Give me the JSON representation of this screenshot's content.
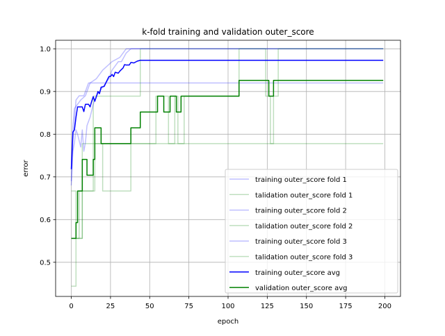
{
  "chart_data": {
    "type": "line",
    "title": "k-fold training and validation outer_score",
    "xlabel": "epoch",
    "ylabel": "error",
    "xlim": [
      -10,
      210
    ],
    "ylim": [
      0.42,
      1.02
    ],
    "xticks": [
      0,
      25,
      50,
      75,
      100,
      125,
      150,
      175,
      200
    ],
    "xtick_labels": [
      "0",
      "25",
      "50",
      "75",
      "100",
      "125",
      "150",
      "175",
      "200"
    ],
    "yticks": [
      0.5,
      0.6,
      0.7,
      0.8,
      0.9,
      1.0
    ],
    "ytick_labels": [
      "0.5",
      "0.6",
      "0.7",
      "0.8",
      "0.9",
      "1.0"
    ],
    "grid": true,
    "legend_position": "lower-right",
    "series": [
      {
        "name": "training outer_score fold 1",
        "color": "#0000ff",
        "alpha": 0.25,
        "points": [
          [
            0,
            0.69
          ],
          [
            1,
            0.78
          ],
          [
            2,
            0.83
          ],
          [
            3,
            0.88
          ],
          [
            5,
            0.89
          ],
          [
            8,
            0.89
          ],
          [
            10,
            0.91
          ],
          [
            11,
            0.92
          ],
          [
            20,
            0.92
          ],
          [
            25,
            0.92
          ],
          [
            30,
            0.92
          ],
          [
            199,
            0.92
          ]
        ]
      },
      {
        "name": "talidation outer_score fold 1",
        "color": "#008000",
        "alpha": 0.25,
        "points": [
          [
            0,
            0.444
          ],
          [
            3,
            0.444
          ],
          [
            3,
            0.556
          ],
          [
            7,
            0.556
          ],
          [
            7,
            0.778
          ],
          [
            14,
            0.778
          ],
          [
            14,
            0.889
          ],
          [
            44,
            0.889
          ],
          [
            44,
            1.0
          ],
          [
            199,
            1.0
          ]
        ]
      },
      {
        "name": "training outer_score fold 2",
        "color": "#0000ff",
        "alpha": 0.25,
        "points": [
          [
            0,
            0.68
          ],
          [
            1,
            0.76
          ],
          [
            2,
            0.78
          ],
          [
            3,
            0.81
          ],
          [
            4,
            0.8
          ],
          [
            6,
            0.77
          ],
          [
            7,
            0.81
          ],
          [
            8,
            0.76
          ],
          [
            9,
            0.78
          ],
          [
            10,
            0.82
          ],
          [
            12,
            0.84
          ],
          [
            14,
            0.87
          ],
          [
            16,
            0.89
          ],
          [
            18,
            0.9
          ],
          [
            20,
            0.91
          ],
          [
            22,
            0.92
          ],
          [
            24,
            0.93
          ],
          [
            26,
            0.95
          ],
          [
            28,
            0.96
          ],
          [
            30,
            0.97
          ],
          [
            32,
            0.97
          ],
          [
            35,
            0.99
          ],
          [
            38,
            1.0
          ],
          [
            199,
            1.0
          ]
        ]
      },
      {
        "name": "talidation outer_score fold 2",
        "color": "#008000",
        "alpha": 0.25,
        "points": [
          [
            0,
            0.556
          ],
          [
            5,
            0.556
          ],
          [
            5,
            0.667
          ],
          [
            15,
            0.667
          ],
          [
            15,
            0.778
          ],
          [
            20,
            0.778
          ],
          [
            20,
            0.667
          ],
          [
            38,
            0.667
          ],
          [
            38,
            0.778
          ],
          [
            54,
            0.778
          ],
          [
            54,
            0.889
          ],
          [
            62,
            0.889
          ],
          [
            62,
            0.778
          ],
          [
            66,
            0.778
          ],
          [
            66,
            0.889
          ],
          [
            68,
            0.889
          ],
          [
            68,
            0.778
          ],
          [
            72,
            0.778
          ],
          [
            72,
            0.889
          ],
          [
            107,
            0.889
          ],
          [
            107,
            1.0
          ],
          [
            124,
            1.0
          ],
          [
            124,
            0.889
          ],
          [
            127,
            0.889
          ],
          [
            127,
            0.778
          ],
          [
            129,
            0.778
          ],
          [
            129,
            0.889
          ],
          [
            132,
            0.889
          ],
          [
            132,
            1.0
          ],
          [
            199,
            1.0
          ]
        ]
      },
      {
        "name": "training outer_score fold 3",
        "color": "#0000ff",
        "alpha": 0.25,
        "points": [
          [
            0,
            0.72
          ],
          [
            1,
            0.82
          ],
          [
            2,
            0.86
          ],
          [
            4,
            0.87
          ],
          [
            6,
            0.88
          ],
          [
            9,
            0.89
          ],
          [
            12,
            0.92
          ],
          [
            16,
            0.93
          ],
          [
            20,
            0.95
          ],
          [
            26,
            0.97
          ],
          [
            31,
            0.98
          ],
          [
            35,
            1.0
          ],
          [
            199,
            1.0
          ]
        ]
      },
      {
        "name": "talidation outer_score fold 3",
        "color": "#008000",
        "alpha": 0.25,
        "points": [
          [
            0,
            0.667
          ],
          [
            3,
            0.667
          ],
          [
            3,
            0.556
          ],
          [
            7,
            0.556
          ],
          [
            7,
            0.667
          ],
          [
            14,
            0.667
          ],
          [
            14,
            0.778
          ],
          [
            199,
            0.778
          ]
        ]
      },
      {
        "name": "training outer_score avg",
        "color": "#0000ff",
        "alpha": 1.0,
        "points": [
          [
            0,
            0.718
          ],
          [
            1,
            0.805
          ],
          [
            2,
            0.81
          ],
          [
            3,
            0.84
          ],
          [
            4,
            0.864
          ],
          [
            7,
            0.864
          ],
          [
            8,
            0.853
          ],
          [
            9,
            0.87
          ],
          [
            11,
            0.87
          ],
          [
            12,
            0.864
          ],
          [
            13,
            0.877
          ],
          [
            14,
            0.888
          ],
          [
            15,
            0.877
          ],
          [
            16,
            0.888
          ],
          [
            17,
            0.9
          ],
          [
            18,
            0.895
          ],
          [
            19,
            0.91
          ],
          [
            21,
            0.912
          ],
          [
            22,
            0.92
          ],
          [
            24,
            0.935
          ],
          [
            25,
            0.935
          ],
          [
            26,
            0.94
          ],
          [
            27,
            0.935
          ],
          [
            28,
            0.945
          ],
          [
            30,
            0.943
          ],
          [
            31,
            0.948
          ],
          [
            33,
            0.955
          ],
          [
            34,
            0.963
          ],
          [
            35,
            0.962
          ],
          [
            37,
            0.962
          ],
          [
            38,
            0.968
          ],
          [
            40,
            0.967
          ],
          [
            42,
            0.971
          ],
          [
            44,
            0.973
          ],
          [
            199,
            0.973
          ]
        ]
      },
      {
        "name": "validation outer_score avg",
        "color": "#008000",
        "alpha": 1.0,
        "points": [
          [
            0,
            0.556
          ],
          [
            3,
            0.556
          ],
          [
            3,
            0.593
          ],
          [
            4,
            0.593
          ],
          [
            4,
            0.667
          ],
          [
            7,
            0.667
          ],
          [
            7,
            0.741
          ],
          [
            10,
            0.741
          ],
          [
            10,
            0.704
          ],
          [
            14,
            0.704
          ],
          [
            14,
            0.741
          ],
          [
            15,
            0.741
          ],
          [
            15,
            0.815
          ],
          [
            19,
            0.815
          ],
          [
            19,
            0.778
          ],
          [
            38,
            0.778
          ],
          [
            38,
            0.815
          ],
          [
            44,
            0.815
          ],
          [
            44,
            0.852
          ],
          [
            55,
            0.852
          ],
          [
            55,
            0.889
          ],
          [
            59,
            0.889
          ],
          [
            59,
            0.852
          ],
          [
            63,
            0.852
          ],
          [
            63,
            0.889
          ],
          [
            67,
            0.889
          ],
          [
            67,
            0.852
          ],
          [
            70,
            0.852
          ],
          [
            70,
            0.889
          ],
          [
            107,
            0.889
          ],
          [
            107,
            0.926
          ],
          [
            126,
            0.926
          ],
          [
            126,
            0.889
          ],
          [
            129,
            0.889
          ],
          [
            129,
            0.926
          ],
          [
            199,
            0.926
          ]
        ]
      }
    ]
  }
}
